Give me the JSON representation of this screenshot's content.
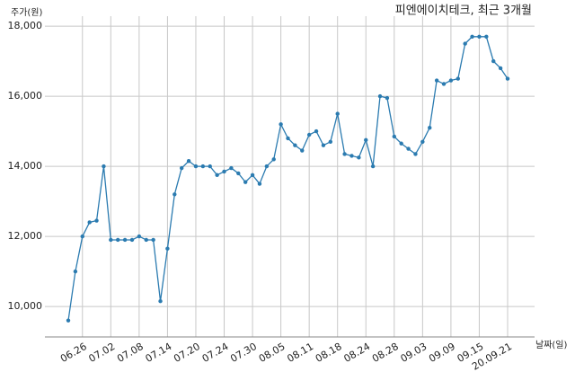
{
  "chart_data": {
    "type": "line",
    "title": "피엔에이치테크, 최근 3개월",
    "y_label": "주가(원)",
    "x_label": "날짜(일)",
    "categories": [
      null,
      null,
      "06.26",
      null,
      null,
      null,
      "07.02",
      null,
      null,
      null,
      "07.08",
      null,
      null,
      null,
      "07.14",
      null,
      null,
      null,
      "07.20",
      null,
      null,
      null,
      "07.24",
      null,
      null,
      null,
      "07.30",
      null,
      null,
      null,
      "08.05",
      null,
      null,
      null,
      "08.11",
      null,
      null,
      null,
      "08.18",
      null,
      null,
      null,
      "08.24",
      null,
      null,
      null,
      "08.28",
      null,
      null,
      null,
      "09.03",
      null,
      null,
      null,
      "09.09",
      null,
      null,
      null,
      "09.15",
      null,
      null,
      null,
      "20.09.21"
    ],
    "series": [
      {
        "name": "주가",
        "color": "#2b7bb0",
        "values": [
          9600,
          11000,
          12000,
          12400,
          12450,
          14000,
          11900,
          11900,
          11900,
          11900,
          12000,
          11900,
          11900,
          10150,
          11650,
          13200,
          13950,
          14150,
          14000,
          14000,
          14000,
          13750,
          13850,
          13950,
          13800,
          13550,
          13750,
          13500,
          14000,
          14200,
          15200,
          14800,
          14600,
          14450,
          14900,
          15000,
          14600,
          14700,
          15500,
          14350,
          14300,
          14250,
          14750,
          14000,
          16000,
          15950,
          14850,
          14650,
          14500,
          14350,
          14700,
          15100,
          16450,
          16350,
          16450,
          16500,
          17500,
          17700,
          17700,
          17700,
          17000,
          16800,
          16500
        ]
      }
    ],
    "ylim": [
      9130,
      18490
    ],
    "yticks": [
      {
        "value": 10000,
        "label": "10,000"
      },
      {
        "value": 12000,
        "label": "12,000"
      },
      {
        "value": 14000,
        "label": "14,000"
      },
      {
        "value": 16000,
        "label": "16,000"
      },
      {
        "value": 18000,
        "label": "18,000"
      }
    ],
    "grid": true
  }
}
